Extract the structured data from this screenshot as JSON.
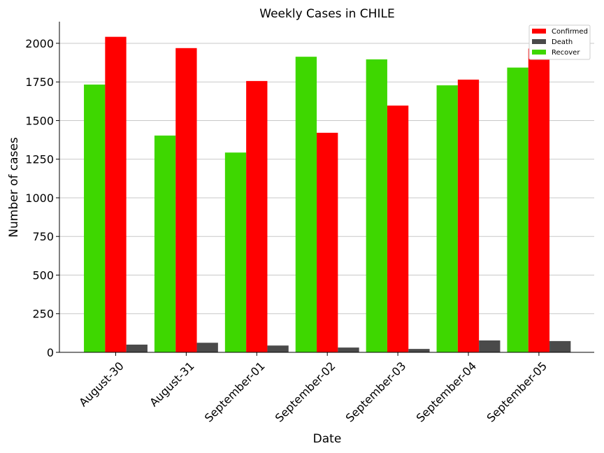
{
  "chart_data": {
    "type": "bar",
    "title": "Weekly Cases in CHILE",
    "xlabel": "Date",
    "ylabel": "Number of cases",
    "ylim": [
      0,
      2140
    ],
    "yticks": [
      0,
      250,
      500,
      750,
      1000,
      1250,
      1500,
      1750,
      2000
    ],
    "grid": "horizontal",
    "legend_position": "top-right",
    "categories": [
      "August-30",
      "August-31",
      "September-01",
      "September-02",
      "September-03",
      "September-04",
      "September-05"
    ],
    "series": [
      {
        "name": "Recover",
        "color": "#3ed700",
        "values": [
          1733,
          1403,
          1293,
          1913,
          1896,
          1728,
          1843
        ]
      },
      {
        "name": "Confirmed",
        "color": "#ff0000",
        "values": [
          2042,
          1969,
          1756,
          1421,
          1597,
          1765,
          1966
        ]
      },
      {
        "name": "Death",
        "color": "#4a4a4a",
        "values": [
          50,
          62,
          44,
          31,
          22,
          77,
          73
        ]
      }
    ],
    "legend": [
      "Confirmed",
      "Death",
      "Recover"
    ]
  }
}
